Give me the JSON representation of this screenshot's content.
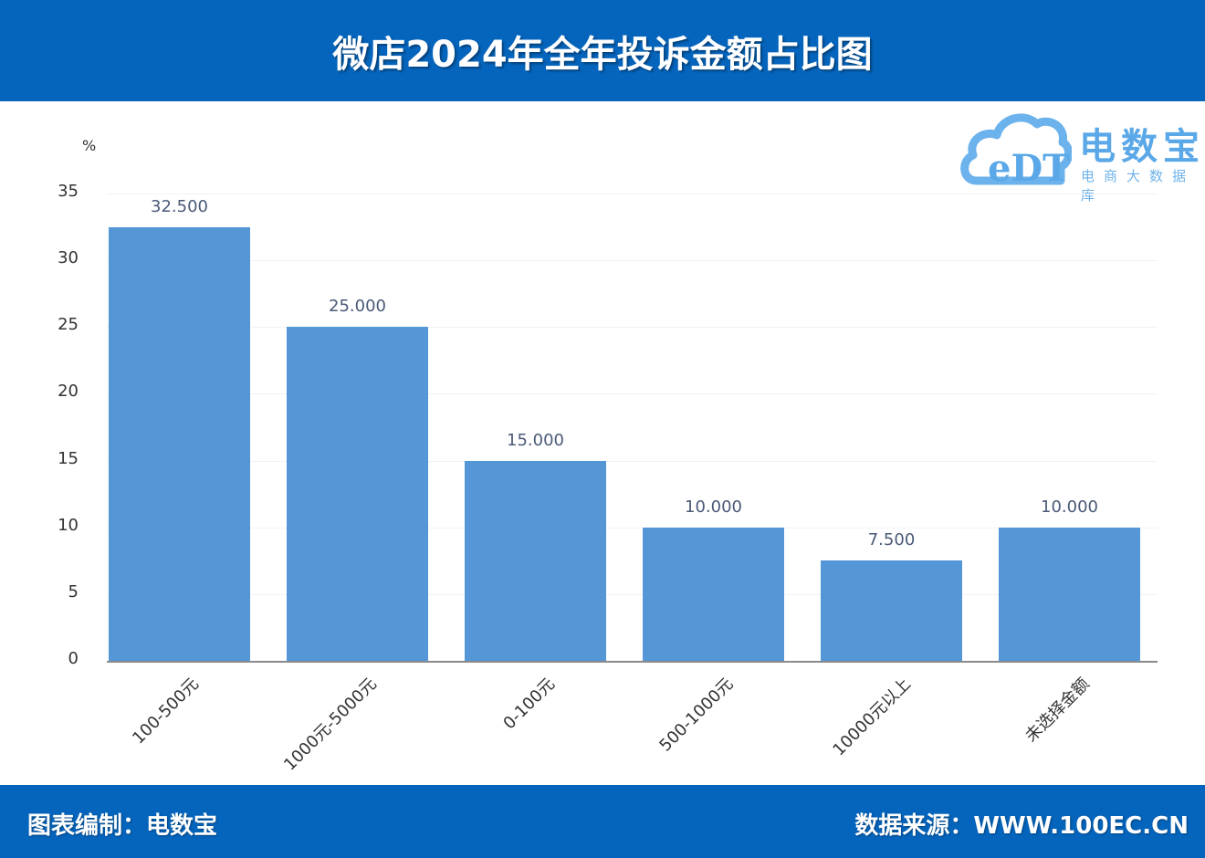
{
  "header": {
    "title": "微店2024年全年投诉金额占比图"
  },
  "logo": {
    "mark": "eDT",
    "name": "电数宝",
    "subtitle": "电商大数据库"
  },
  "footer": {
    "left": "图表编制：电数宝",
    "right": "数据来源：WWW.100EC.CN"
  },
  "colors": {
    "header_bg": "#0565bd",
    "bar": "#5596d6",
    "bar_label": "#4b5a78",
    "logo": "#5aa8e8"
  },
  "chart_data": {
    "type": "bar",
    "title": "微店2024年全年投诉金额占比图",
    "xlabel": "",
    "ylabel": "%",
    "ylim": [
      0,
      35
    ],
    "yticks": [
      "0",
      "5",
      "10",
      "15",
      "20",
      "25",
      "30",
      "35"
    ],
    "grid": true,
    "legend": null,
    "categories": [
      "100-500元",
      "1000元-5000元",
      "0-100元",
      "500-1000元",
      "10000元以上",
      "未选择金额"
    ],
    "values": [
      32.5,
      25.0,
      15.0,
      10.0,
      7.5,
      10.0
    ],
    "value_labels": [
      "32.500",
      "25.000",
      "15.000",
      "10.000",
      "7.500",
      "10.000"
    ]
  }
}
